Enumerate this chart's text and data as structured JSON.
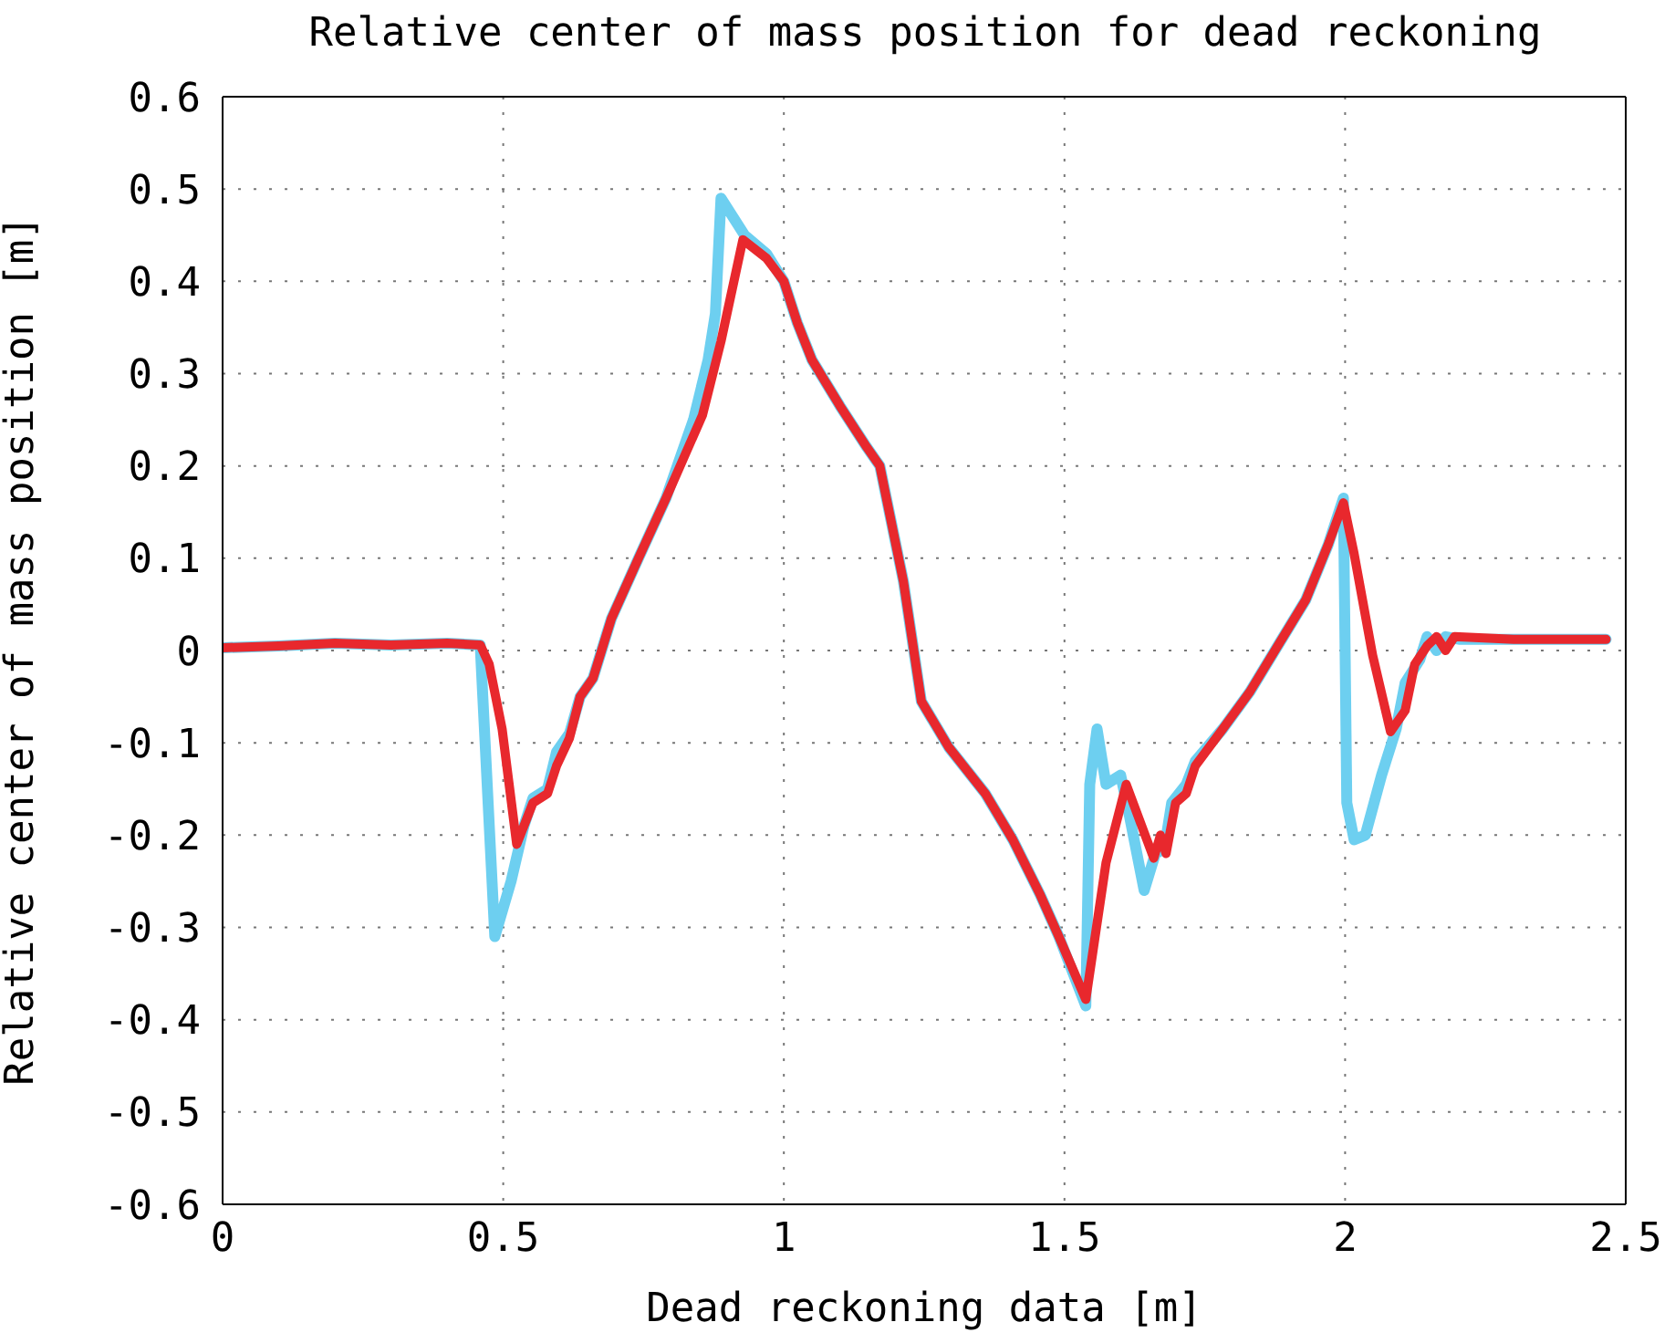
{
  "chart_data": {
    "type": "line",
    "title": "Relative center of mass position for dead reckoning",
    "xlabel": "Dead reckoning data [m]",
    "ylabel": "Relative center of mass position [m]",
    "xlim": [
      0,
      2.5
    ],
    "xticks": [
      0,
      0.5,
      1,
      1.5,
      2,
      2.5
    ],
    "ylim": [
      -0.6,
      0.6
    ],
    "yticks": [
      -0.6,
      -0.5,
      -0.4,
      -0.3,
      -0.2,
      -0.1,
      0,
      0.1,
      0.2,
      0.3,
      0.4,
      0.5,
      0.6
    ],
    "grid": true,
    "line_style": "solid",
    "marker": "none",
    "series": [
      {
        "color": "#6dcff0",
        "x": [
          0,
          0.1,
          0.2,
          0.3,
          0.4,
          0.459,
          0.485,
          0.514,
          0.537,
          0.553,
          0.579,
          0.595,
          0.618,
          0.637,
          0.66,
          0.693,
          0.741,
          0.79,
          0.839,
          0.865,
          0.878,
          0.888,
          0.93,
          0.969,
          1.0,
          1.024,
          1.05,
          1.1,
          1.148,
          1.171,
          1.213,
          1.245,
          1.294,
          1.359,
          1.408,
          1.457,
          1.49,
          1.538,
          1.545,
          1.558,
          1.574,
          1.6,
          1.616,
          1.642,
          1.662,
          1.678,
          1.691,
          1.717,
          1.733,
          1.782,
          1.83,
          1.88,
          1.93,
          1.97,
          1.997,
          2.003,
          2.016,
          2.036,
          2.065,
          2.091,
          2.107,
          2.133,
          2.146,
          2.163,
          2.179,
          2.205,
          2.3,
          2.465
        ],
        "values": [
          0.003,
          0.005,
          0.008,
          0.006,
          0.008,
          0.006,
          -0.31,
          -0.25,
          -0.19,
          -0.16,
          -0.15,
          -0.11,
          -0.09,
          -0.05,
          -0.03,
          0.035,
          0.1,
          0.165,
          0.25,
          0.315,
          0.365,
          0.49,
          0.45,
          0.43,
          0.4,
          0.355,
          0.315,
          0.265,
          0.22,
          0.2,
          0.075,
          -0.055,
          -0.105,
          -0.155,
          -0.205,
          -0.265,
          -0.31,
          -0.385,
          -0.145,
          -0.085,
          -0.145,
          -0.135,
          -0.18,
          -0.26,
          -0.22,
          -0.215,
          -0.165,
          -0.145,
          -0.12,
          -0.085,
          -0.045,
          0.005,
          0.055,
          0.115,
          0.165,
          -0.165,
          -0.205,
          -0.2,
          -0.135,
          -0.085,
          -0.035,
          -0.01,
          0.015,
          0,
          0.015,
          0.012,
          0.012,
          0.012
        ]
      },
      {
        "color": "#e8282d",
        "x": [
          0,
          0.1,
          0.2,
          0.3,
          0.4,
          0.459,
          0.475,
          0.498,
          0.524,
          0.553,
          0.579,
          0.595,
          0.618,
          0.637,
          0.66,
          0.693,
          0.741,
          0.79,
          0.855,
          0.888,
          0.927,
          0.969,
          1.0,
          1.024,
          1.05,
          1.1,
          1.148,
          1.171,
          1.213,
          1.245,
          1.294,
          1.359,
          1.408,
          1.457,
          1.49,
          1.538,
          1.574,
          1.61,
          1.659,
          1.671,
          1.681,
          1.698,
          1.717,
          1.733,
          1.782,
          1.83,
          1.88,
          1.93,
          1.97,
          1.997,
          2.016,
          2.049,
          2.081,
          2.107,
          2.124,
          2.146,
          2.163,
          2.179,
          2.195,
          2.3,
          2.465
        ],
        "values": [
          0.003,
          0.005,
          0.008,
          0.006,
          0.008,
          0.006,
          -0.015,
          -0.085,
          -0.21,
          -0.165,
          -0.155,
          -0.125,
          -0.095,
          -0.05,
          -0.03,
          0.035,
          0.1,
          0.165,
          0.255,
          0.335,
          0.445,
          0.425,
          0.4,
          0.355,
          0.315,
          0.265,
          0.22,
          0.2,
          0.075,
          -0.055,
          -0.105,
          -0.155,
          -0.205,
          -0.265,
          -0.31,
          -0.378,
          -0.23,
          -0.145,
          -0.225,
          -0.2,
          -0.22,
          -0.165,
          -0.155,
          -0.125,
          -0.085,
          -0.045,
          0.005,
          0.055,
          0.115,
          0.16,
          0.105,
          -0.005,
          -0.088,
          -0.065,
          -0.015,
          0.005,
          0.015,
          0,
          0.015,
          0.012,
          0.012
        ]
      }
    ]
  }
}
